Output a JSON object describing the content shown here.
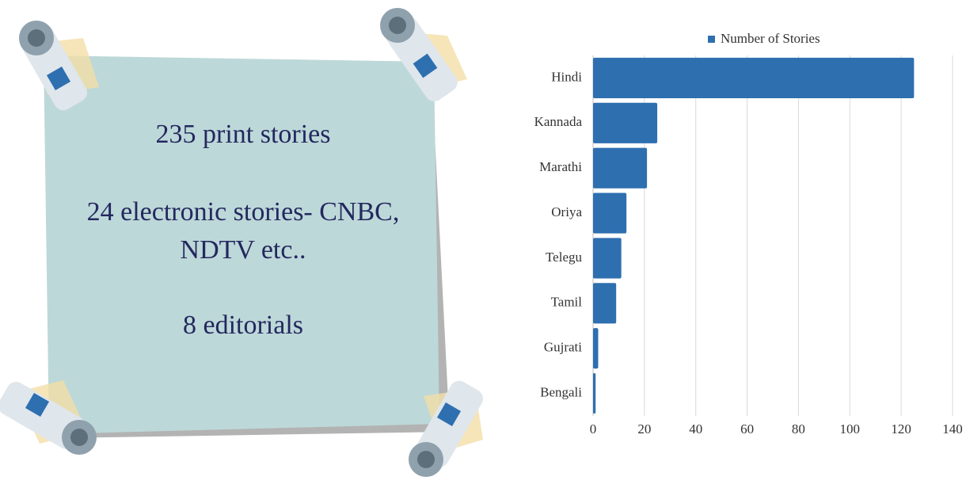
{
  "note": {
    "lines": [
      "235 print stories",
      "24 electronic stories- CNBC,",
      "NDTV etc..",
      "8 editorials"
    ]
  },
  "chart_data": {
    "type": "hbar",
    "categories": [
      "Hindi",
      "Kannada",
      "Marathi",
      "Oriya",
      "Telegu",
      "Tamil",
      "Gujrati",
      "Bengali"
    ],
    "series": [
      {
        "name": "Number of Stories",
        "color": "#2e6fb0",
        "values": [
          125,
          25,
          21,
          13,
          11,
          9,
          2,
          1
        ]
      }
    ],
    "xlim": [
      0,
      140
    ],
    "xticks": [
      0,
      20,
      40,
      60,
      80,
      100,
      120,
      140
    ],
    "grid": true,
    "legend": "top"
  }
}
